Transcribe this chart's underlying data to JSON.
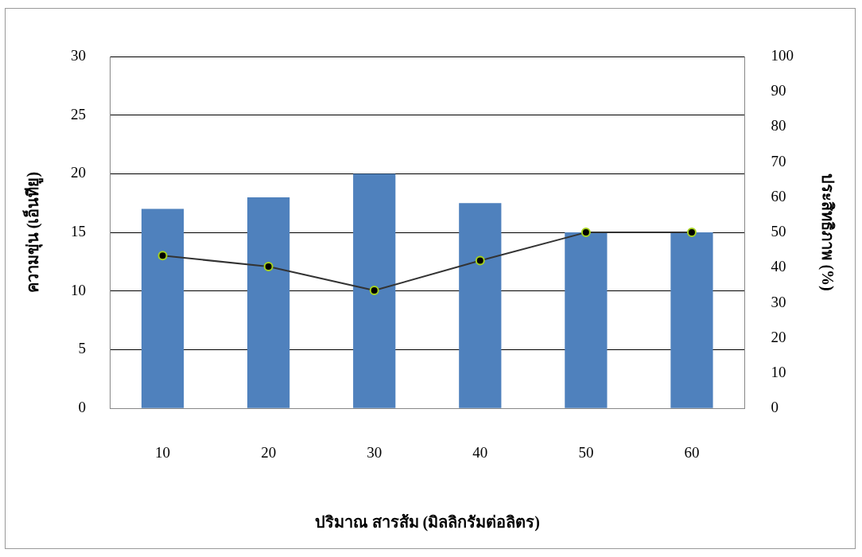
{
  "chart_data": {
    "type": "bar",
    "xlabel": "ปริมาณ สารส้ม (มิลลิกรัมต่อลิตร)",
    "ylabel": "ความขุ่น (เอ็นทียู)",
    "y2label": "ประสิทธิภาพ (%)",
    "categories": [
      "10",
      "20",
      "30",
      "40",
      "50",
      "60"
    ],
    "series": [
      {
        "color": "#4f81bd",
        "values": [
          17,
          18,
          20,
          17.5,
          15,
          15
        ]
      },
      {
        "type": "line",
        "axis": "y2",
        "color": "#333333",
        "marker": "circle",
        "values": [
          43.4,
          40.3,
          33.5,
          42,
          50,
          50
        ]
      }
    ],
    "ylim": [
      0,
      30
    ],
    "yticks": [
      0,
      5,
      10,
      15,
      20,
      25,
      30
    ],
    "y2lim": [
      0,
      100
    ],
    "y2ticks": [
      0,
      10,
      20,
      30,
      40,
      50,
      60,
      70,
      80,
      90,
      100
    ],
    "grid": "y",
    "legend": false
  }
}
